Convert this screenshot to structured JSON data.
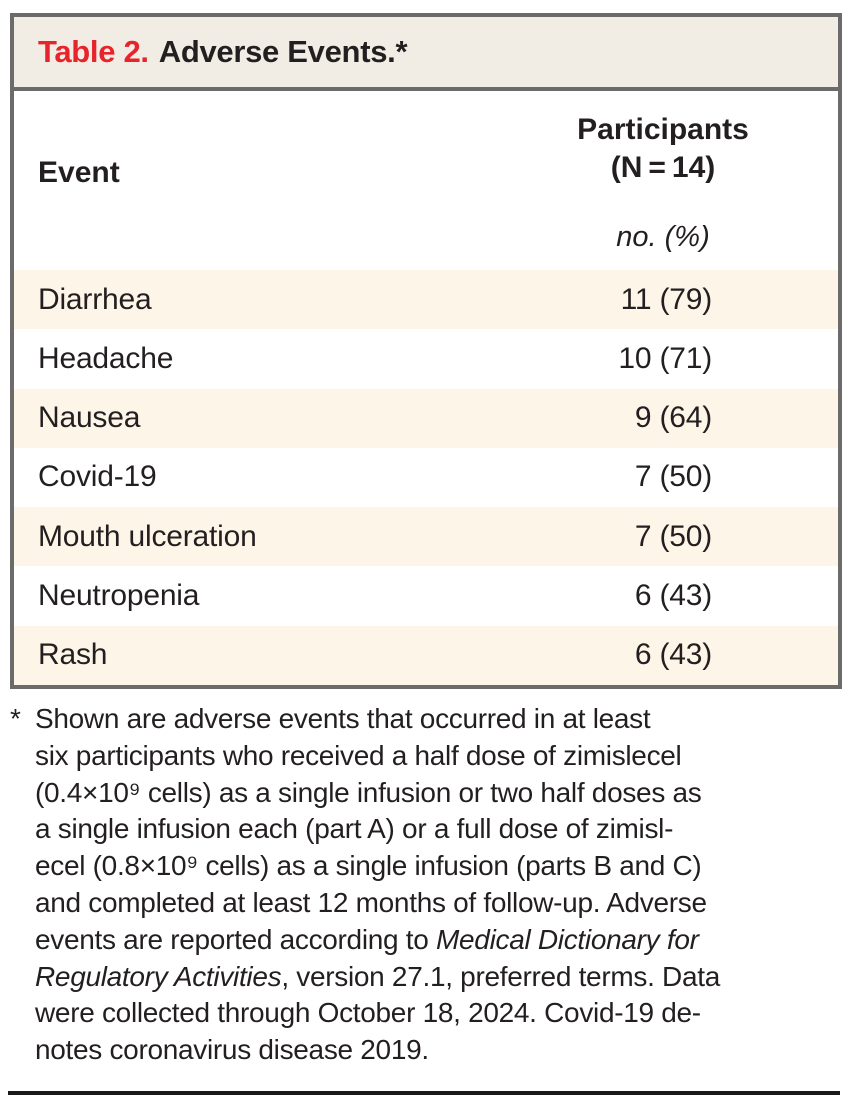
{
  "table": {
    "title_label": "Table 2.",
    "title_text": "Adverse Events.*",
    "columns": {
      "event": "Event",
      "participants_line1": "Participants",
      "participants_line2": "(N = 14)",
      "units": "no. (%)"
    },
    "rows": [
      {
        "event": "Diarrhea",
        "value": "11 (79)"
      },
      {
        "event": "Headache",
        "value": "10 (71)"
      },
      {
        "event": "Nausea",
        "value": "9 (64)"
      },
      {
        "event": "Covid-19",
        "value": "7 (50)"
      },
      {
        "event": "Mouth ulceration",
        "value": "7 (50)"
      },
      {
        "event": "Neutropenia",
        "value": "6 (43)"
      },
      {
        "event": "Rash",
        "value": "6 (43)"
      }
    ]
  },
  "footnote": {
    "marker": "*",
    "lines": [
      {
        "segments": [
          {
            "t": "Shown are adverse events that occurred in at least"
          }
        ]
      },
      {
        "segments": [
          {
            "t": "six participants who received a half dose of zimislecel"
          }
        ]
      },
      {
        "segments": [
          {
            "t": "(0.4×10⁹ cells) as a single infusion or two half doses as"
          }
        ]
      },
      {
        "segments": [
          {
            "t": "a single infusion each (part A) or a full dose of zimisl-"
          }
        ]
      },
      {
        "segments": [
          {
            "t": "ecel (0.8×10⁹ cells) as a single infusion (parts B and C)"
          }
        ]
      },
      {
        "segments": [
          {
            "t": "and completed at least 12 months of follow-up. Adverse"
          }
        ]
      },
      {
        "segments": [
          {
            "t": "events are reported according to "
          },
          {
            "t": "Medical Dictionary for",
            "i": true
          }
        ]
      },
      {
        "segments": [
          {
            "t": "Regulatory Activities",
            "i": true
          },
          {
            "t": ", version 27.1, preferred terms. Data"
          }
        ]
      },
      {
        "segments": [
          {
            "t": "were collected through October 18, 2024. Covid-19 de-"
          }
        ]
      },
      {
        "segments": [
          {
            "t": "notes coronavirus disease 2019."
          }
        ]
      }
    ]
  },
  "colors": {
    "accent_red": "#e7232b",
    "banner_bg": "#f2ede4",
    "stripe_bg": "#fdf5e8",
    "border_gray": "#6b6b6b",
    "text": "#231f20",
    "bottom_rule": "#191919"
  }
}
